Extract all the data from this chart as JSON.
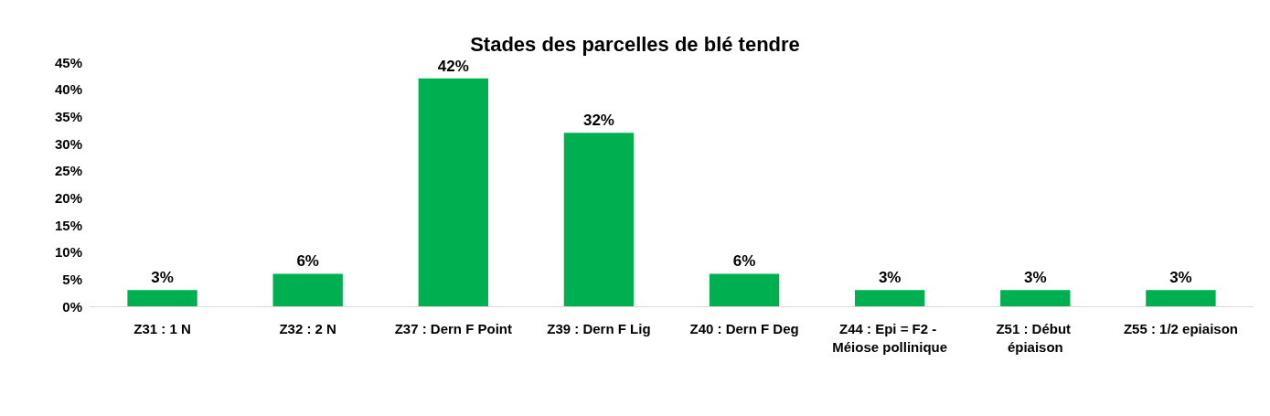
{
  "chart_data": {
    "type": "bar",
    "title": "Stades des parcelles de blé tendre",
    "categories": [
      "Z31 : 1 N",
      "Z32 : 2 N",
      "Z37 : Dern F Point",
      "Z39 : Dern F Lig",
      "Z40 : Dern F Deg",
      "Z44 : Epi = F2 - Méiose pollinique",
      "Z51 : Début épiaison",
      "Z55 : 1/2 epiaison"
    ],
    "values": [
      3,
      6,
      42,
      32,
      6,
      3,
      3,
      3
    ],
    "value_labels": [
      "3%",
      "6%",
      "42%",
      "32%",
      "6%",
      "3%",
      "3%",
      "3%"
    ],
    "color": "#00b050",
    "ylim": [
      0,
      45
    ],
    "yticks": [
      {
        "value": 0,
        "label": "0%"
      },
      {
        "value": 5,
        "label": "5%"
      },
      {
        "value": 10,
        "label": "10%"
      },
      {
        "value": 15,
        "label": "15%"
      },
      {
        "value": 20,
        "label": "20%"
      },
      {
        "value": 25,
        "label": "25%"
      },
      {
        "value": 30,
        "label": "30%"
      },
      {
        "value": 35,
        "label": "35%"
      },
      {
        "value": 40,
        "label": "40%"
      },
      {
        "value": 45,
        "label": "45%"
      }
    ],
    "grid": false
  }
}
